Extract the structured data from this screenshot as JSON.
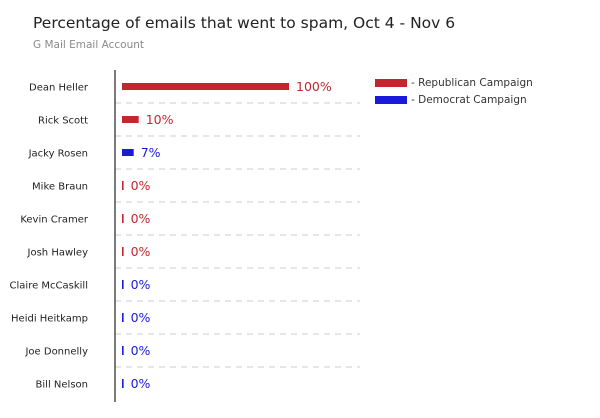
{
  "title": "Percentage of emails that went to spam, Oct 4 - Nov 6",
  "subtitle": "G Mail Email Account",
  "colors": {
    "republican": "#c4262e",
    "democrat": "#1a1adb",
    "axis": "#333333",
    "grid": "#cccccc"
  },
  "legend": [
    {
      "label": "- Republican Campaign",
      "color_key": "republican"
    },
    {
      "label": "- Democrat Campaign",
      "color_key": "democrat"
    }
  ],
  "chart_data": {
    "type": "bar",
    "orientation": "horizontal",
    "title": "Percentage of emails that went to spam, Oct 4 - Nov 6",
    "subtitle": "G Mail Email Account",
    "categories": [
      "Dean Heller",
      "Rick Scott",
      "Jacky Rosen",
      "Mike Braun",
      "Kevin Cramer",
      "Josh Hawley",
      "Claire McCaskill",
      "Heidi Heitkamp",
      "Joe Donnelly",
      "Bill Nelson"
    ],
    "values": [
      100,
      10,
      7,
      0,
      0,
      0,
      0,
      0,
      0,
      0
    ],
    "value_labels": [
      "100%",
      "10%",
      "7%",
      "0%",
      "0%",
      "0%",
      "0%",
      "0%",
      "0%",
      "0%"
    ],
    "groups": [
      "Republican Campaign",
      "Republican Campaign",
      "Democrat Campaign",
      "Republican Campaign",
      "Republican Campaign",
      "Republican Campaign",
      "Democrat Campaign",
      "Democrat Campaign",
      "Democrat Campaign",
      "Democrat Campaign"
    ],
    "xlim": [
      0,
      100
    ],
    "grid": true,
    "legend_position": "top-right"
  }
}
